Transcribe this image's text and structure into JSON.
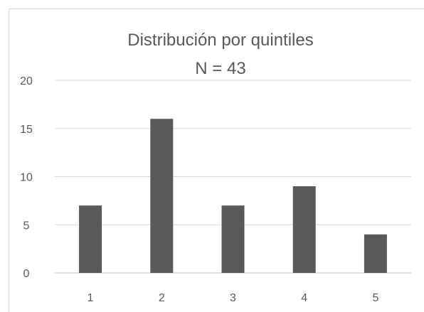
{
  "chart_data": {
    "type": "bar",
    "title": "Distribución por quintiles",
    "subtitle": "N = 43",
    "xlabel": "",
    "ylabel": "",
    "categories": [
      "1",
      "2",
      "3",
      "4",
      "5"
    ],
    "values": [
      7,
      16,
      7,
      9,
      4
    ],
    "ylim": [
      0,
      20
    ],
    "yticks": [
      0,
      5,
      10,
      15,
      20
    ],
    "grid": true,
    "legend": "none",
    "bar_color": "#595959",
    "grid_color": "#d9d9d9",
    "text_color": "#595959"
  }
}
